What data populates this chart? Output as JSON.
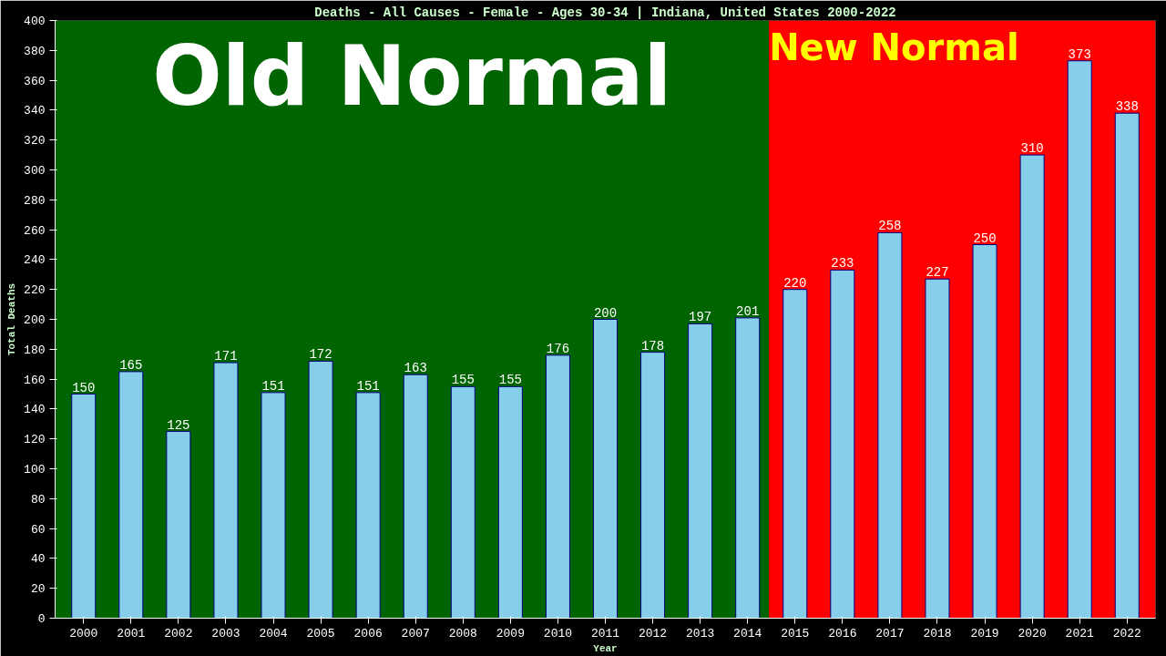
{
  "chart_data": {
    "type": "bar",
    "title": "Deaths - All Causes - Female - Ages 30-34 | Indiana, United States 2000-2022",
    "xlabel": "Year",
    "ylabel": "Total Deaths",
    "x": [
      2000,
      2001,
      2002,
      2003,
      2004,
      2005,
      2006,
      2007,
      2008,
      2009,
      2010,
      2011,
      2012,
      2013,
      2014,
      2015,
      2016,
      2017,
      2018,
      2019,
      2020,
      2021,
      2022
    ],
    "values": [
      150,
      165,
      125,
      171,
      151,
      172,
      151,
      163,
      155,
      155,
      176,
      200,
      178,
      197,
      201,
      220,
      233,
      258,
      227,
      250,
      310,
      373,
      338
    ],
    "color": "#87ceeb",
    "data_labels": true,
    "xlim": [
      1999.4,
      2022.6
    ],
    "xticks": [
      2000,
      2001,
      2002,
      2003,
      2004,
      2005,
      2006,
      2007,
      2008,
      2009,
      2010,
      2011,
      2012,
      2013,
      2014,
      2015,
      2016,
      2017,
      2018,
      2019,
      2020,
      2021,
      2022
    ],
    "ylim": [
      0,
      400
    ],
    "yticks": [
      0,
      20,
      40,
      60,
      80,
      100,
      120,
      140,
      160,
      180,
      200,
      220,
      240,
      260,
      280,
      300,
      320,
      340,
      360,
      380,
      400
    ],
    "bands": [
      {
        "axis": "x",
        "from": 1999.4,
        "to": 2014.45,
        "label": "Old Normal",
        "color": "#006400"
      },
      {
        "axis": "x",
        "from": 2014.45,
        "to": 2022.6,
        "label": "New Normal",
        "color": "#ff0000"
      }
    ],
    "grid": false
  }
}
